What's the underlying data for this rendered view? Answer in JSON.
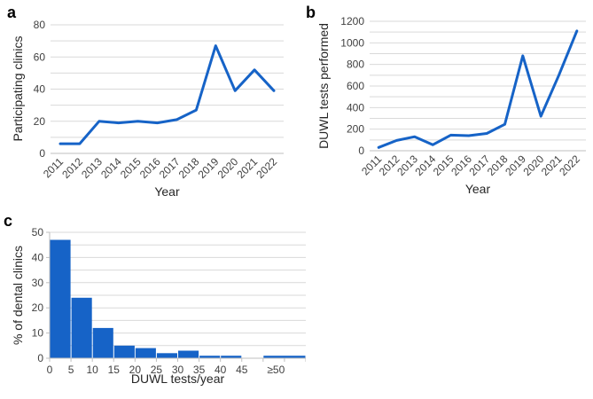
{
  "figure": {
    "background": "#ffffff",
    "accent_blue": "#1663C7",
    "gridline_color": "#D9D9D9",
    "axis_line_color": "#BFBFBF",
    "tick_label_color": "#404040",
    "axis_title_color": "#262626"
  },
  "panels": [
    {
      "letter": "a"
    },
    {
      "letter": "b"
    },
    {
      "letter": "c"
    }
  ],
  "chart_data": [
    {
      "panel": "a",
      "type": "line",
      "title": "",
      "xlabel": "Year",
      "ylabel": "Participating clinics",
      "categories": [
        "2011",
        "2012",
        "2013",
        "2014",
        "2015",
        "2016",
        "2017",
        "2018",
        "2019",
        "2020",
        "2021",
        "2022"
      ],
      "values": [
        6,
        6,
        20,
        19,
        20,
        19,
        21,
        27,
        67,
        39,
        52,
        39
      ],
      "ylim": [
        0,
        80
      ],
      "y_tick_step": 20,
      "y_grid_step": 10,
      "grid": true,
      "legend": "none",
      "line_color": "#1663C7",
      "x_tick_rotation": -45
    },
    {
      "panel": "b",
      "type": "line",
      "title": "",
      "xlabel": "Year",
      "ylabel": "DUWL tests performed",
      "categories": [
        "2011",
        "2012",
        "2013",
        "2014",
        "2015",
        "2016",
        "2017",
        "2018",
        "2019",
        "2020",
        "2021",
        "2022"
      ],
      "values": [
        30,
        95,
        130,
        55,
        145,
        140,
        160,
        245,
        880,
        320,
        700,
        1110
      ],
      "ylim": [
        0,
        1200
      ],
      "y_tick_step": 200,
      "y_grid_step": 100,
      "grid": true,
      "legend": "none",
      "line_color": "#1663C7",
      "x_tick_rotation": -45
    },
    {
      "panel": "c",
      "type": "bar",
      "title": "",
      "xlabel": "DUWL tests/year",
      "ylabel": "% of dental clinics",
      "bin_labels": [
        "0-5",
        "5-10",
        "10-15",
        "15-20",
        "20-25",
        "25-30",
        "30-35",
        "35-40",
        "40-45",
        "45-50",
        "≥50"
      ],
      "x_tick_labels": [
        "0",
        "5",
        "10",
        "15",
        "20",
        "25",
        "30",
        "35",
        "40",
        "45",
        "≥50"
      ],
      "values": [
        47,
        24,
        12,
        5,
        4,
        2,
        3,
        1,
        1,
        0,
        1
      ],
      "ylim": [
        0,
        50
      ],
      "y_tick_step": 10,
      "y_grid_step": 5,
      "grid": true,
      "legend": "none",
      "bar_color": "#1663C7"
    }
  ]
}
